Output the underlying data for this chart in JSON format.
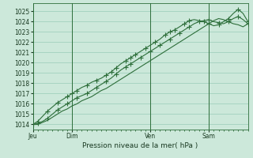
{
  "bg_color": "#cce8da",
  "grid_color": "#99ccb8",
  "line_color": "#2d6e3a",
  "title": "Pression niveau de la mer( hPa )",
  "ylabel_ticks": [
    1014,
    1015,
    1016,
    1017,
    1018,
    1019,
    1020,
    1021,
    1022,
    1023,
    1024,
    1025
  ],
  "ylim": [
    1013.5,
    1025.8
  ],
  "day_labels": [
    "Jeu",
    "Dim",
    "Ven",
    "Sam"
  ],
  "day_positions": [
    0,
    48,
    144,
    216
  ],
  "total_hours": 264,
  "series1_x": [
    0,
    6,
    12,
    18,
    24,
    30,
    36,
    42,
    48,
    54,
    60,
    66,
    72,
    78,
    84,
    90,
    96,
    102,
    108,
    114,
    120,
    126,
    132,
    138,
    144,
    150,
    156,
    162,
    168,
    174,
    180,
    186,
    192,
    198,
    204,
    210,
    216,
    222,
    228,
    234,
    240,
    246,
    252,
    258,
    264
  ],
  "series1_y": [
    1014.0,
    1014.3,
    1014.8,
    1015.3,
    1015.7,
    1016.1,
    1016.4,
    1016.7,
    1017.0,
    1017.3,
    1017.6,
    1017.8,
    1018.1,
    1018.3,
    1018.5,
    1018.8,
    1019.1,
    1019.5,
    1019.9,
    1020.2,
    1020.5,
    1020.8,
    1021.1,
    1021.4,
    1021.7,
    1022.0,
    1022.3,
    1022.7,
    1023.0,
    1023.2,
    1023.5,
    1023.8,
    1024.1,
    1024.2,
    1024.1,
    1024.0,
    1023.8,
    1023.6,
    1023.7,
    1024.0,
    1024.3,
    1024.8,
    1025.2,
    1024.8,
    1024.0
  ],
  "series2_x": [
    0,
    6,
    12,
    18,
    24,
    30,
    36,
    42,
    48,
    54,
    60,
    66,
    72,
    78,
    84,
    90,
    96,
    102,
    108,
    114,
    120,
    126,
    132,
    138,
    144,
    150,
    156,
    162,
    168,
    174,
    180,
    186,
    192,
    198,
    204,
    210,
    216,
    222,
    228,
    234,
    240,
    246,
    252,
    258,
    264
  ],
  "series2_y": [
    1014.0,
    1014.1,
    1014.3,
    1014.6,
    1015.0,
    1015.4,
    1015.7,
    1016.0,
    1016.3,
    1016.6,
    1016.8,
    1017.0,
    1017.3,
    1017.6,
    1017.9,
    1018.2,
    1018.5,
    1018.9,
    1019.3,
    1019.6,
    1019.9,
    1020.2,
    1020.5,
    1020.8,
    1021.1,
    1021.4,
    1021.7,
    1022.0,
    1022.3,
    1022.6,
    1022.9,
    1023.2,
    1023.5,
    1023.8,
    1024.0,
    1024.1,
    1024.2,
    1024.0,
    1023.9,
    1023.8,
    1024.0,
    1024.3,
    1024.5,
    1024.2,
    1023.8
  ],
  "series3_x": [
    0,
    6,
    12,
    18,
    24,
    30,
    36,
    42,
    48,
    54,
    60,
    66,
    72,
    78,
    84,
    90,
    96,
    102,
    108,
    114,
    120,
    126,
    132,
    138,
    144,
    150,
    156,
    162,
    168,
    174,
    180,
    186,
    192,
    198,
    204,
    210,
    216,
    222,
    228,
    234,
    240,
    246,
    252,
    258,
    264
  ],
  "series3_y": [
    1014.0,
    1014.0,
    1014.2,
    1014.4,
    1014.7,
    1015.0,
    1015.3,
    1015.5,
    1015.8,
    1016.0,
    1016.3,
    1016.5,
    1016.7,
    1017.0,
    1017.3,
    1017.5,
    1017.8,
    1018.1,
    1018.4,
    1018.7,
    1019.0,
    1019.3,
    1019.6,
    1019.9,
    1020.2,
    1020.5,
    1020.8,
    1021.1,
    1021.4,
    1021.7,
    1022.0,
    1022.3,
    1022.6,
    1022.9,
    1023.2,
    1023.5,
    1023.8,
    1024.1,
    1024.3,
    1024.2,
    1024.0,
    1023.8,
    1023.7,
    1023.5,
    1023.8
  ],
  "markers1_x": [
    0,
    6,
    18,
    30,
    42,
    48,
    54,
    66,
    78,
    90,
    96,
    102,
    114,
    120,
    126,
    138,
    150,
    162,
    168,
    174,
    186,
    192,
    210,
    216,
    228,
    240,
    252,
    264
  ],
  "markers1_y": [
    1014.0,
    1014.3,
    1015.3,
    1016.1,
    1016.7,
    1017.0,
    1017.3,
    1017.8,
    1018.3,
    1018.8,
    1019.1,
    1019.5,
    1020.2,
    1020.5,
    1020.8,
    1021.4,
    1022.0,
    1022.7,
    1023.0,
    1023.2,
    1023.8,
    1024.1,
    1024.0,
    1023.8,
    1023.7,
    1024.3,
    1025.2,
    1024.0
  ],
  "markers2_x": [
    0,
    6,
    18,
    30,
    42,
    54,
    66,
    78,
    90,
    102,
    114,
    120,
    132,
    144,
    156,
    168,
    180,
    192,
    204,
    216,
    228,
    240,
    252,
    264
  ],
  "markers2_y": [
    1014.0,
    1014.1,
    1014.6,
    1015.4,
    1016.0,
    1016.6,
    1017.0,
    1017.6,
    1018.2,
    1018.9,
    1019.6,
    1019.9,
    1020.5,
    1021.1,
    1021.7,
    1022.3,
    1022.9,
    1023.5,
    1024.0,
    1024.2,
    1023.9,
    1024.0,
    1024.5,
    1023.8
  ]
}
